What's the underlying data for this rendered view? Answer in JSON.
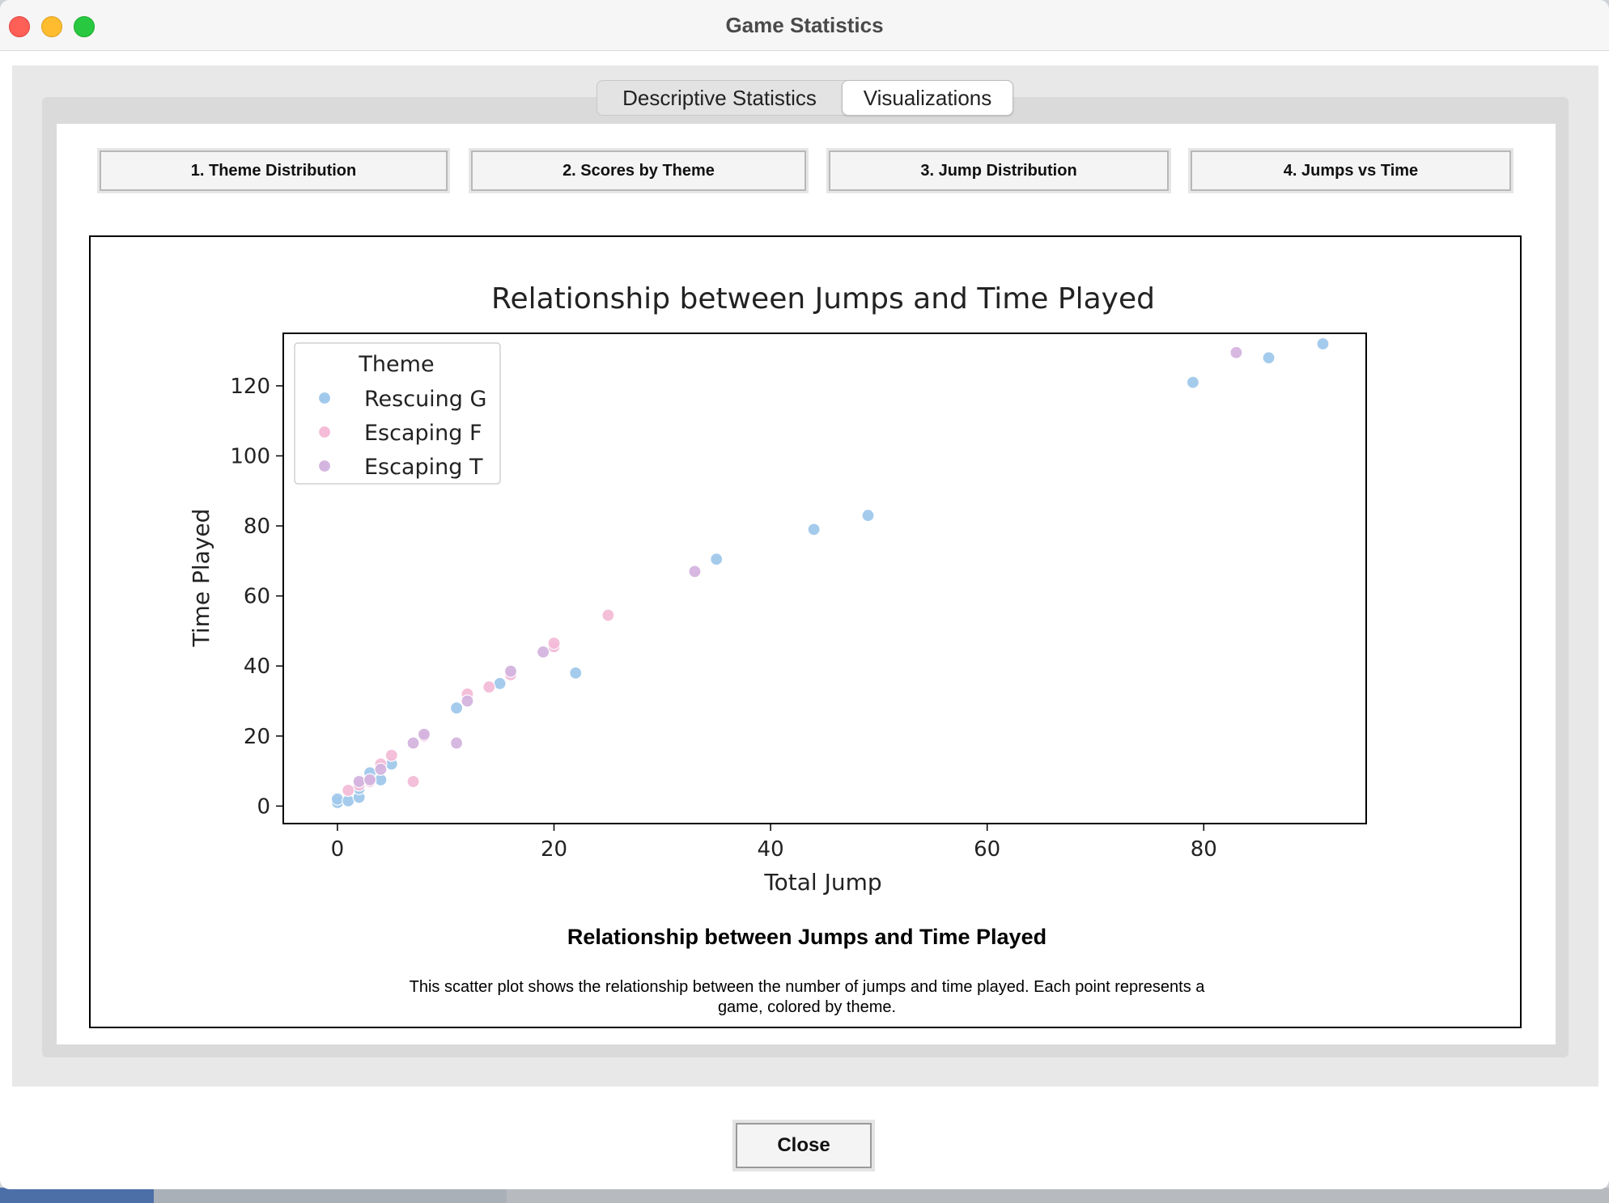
{
  "window": {
    "title": "Game Statistics"
  },
  "tabs": [
    {
      "label": "Descriptive Statistics",
      "active": false
    },
    {
      "label": "Visualizations",
      "active": true
    }
  ],
  "viz_buttons": [
    {
      "label": "1. Theme Distribution"
    },
    {
      "label": "2. Scores by Theme"
    },
    {
      "label": "3. Jump Distribution"
    },
    {
      "label": "4. Jumps vs Time"
    }
  ],
  "chart_data": {
    "type": "scatter",
    "title": "Relationship between Jumps and Time Played",
    "xlabel": "Total Jump",
    "ylabel": "Time Played",
    "xlim": [
      -5,
      95
    ],
    "ylim": [
      -5,
      135
    ],
    "x_ticks": [
      0,
      20,
      40,
      60,
      80
    ],
    "y_ticks": [
      0,
      20,
      40,
      60,
      80,
      100,
      120
    ],
    "grid": false,
    "legend": {
      "title": "Theme",
      "placement": "upper left"
    },
    "series": [
      {
        "name": "Rescuing G",
        "color": "#a1c9ec",
        "points": [
          [
            0,
            1
          ],
          [
            0,
            2
          ],
          [
            1,
            1.5
          ],
          [
            2,
            2.5
          ],
          [
            2,
            5
          ],
          [
            3,
            9.5
          ],
          [
            4,
            7.5
          ],
          [
            5,
            12
          ],
          [
            11,
            28
          ],
          [
            15,
            35
          ],
          [
            22,
            38
          ],
          [
            35,
            70.5
          ],
          [
            44,
            79
          ],
          [
            49,
            83
          ],
          [
            79,
            121
          ],
          [
            86,
            128
          ],
          [
            91,
            132
          ]
        ]
      },
      {
        "name": "Escaping F",
        "color": "#f4bcd8",
        "points": [
          [
            1,
            4.5
          ],
          [
            2,
            6
          ],
          [
            3,
            7
          ],
          [
            4,
            12
          ],
          [
            5,
            14.5
          ],
          [
            7,
            7
          ],
          [
            8,
            20
          ],
          [
            12,
            32
          ],
          [
            14,
            34
          ],
          [
            16,
            37.5
          ],
          [
            20,
            45.5
          ],
          [
            20,
            46.5
          ],
          [
            25,
            54.5
          ]
        ]
      },
      {
        "name": "Escaping T",
        "color": "#d4b5e0",
        "points": [
          [
            2,
            7
          ],
          [
            3,
            7.5
          ],
          [
            4,
            10.5
          ],
          [
            7,
            18
          ],
          [
            8,
            20.5
          ],
          [
            11,
            18
          ],
          [
            12,
            30
          ],
          [
            16,
            38.5
          ],
          [
            19,
            44
          ],
          [
            33,
            67
          ],
          [
            83,
            129.5
          ]
        ]
      }
    ]
  },
  "caption": {
    "title": "Relationship between Jumps and Time Played",
    "description": "This scatter plot shows the relationship between the number of jumps and time played. Each point represents a game, colored by theme."
  },
  "footer": {
    "close_label": "Close"
  }
}
